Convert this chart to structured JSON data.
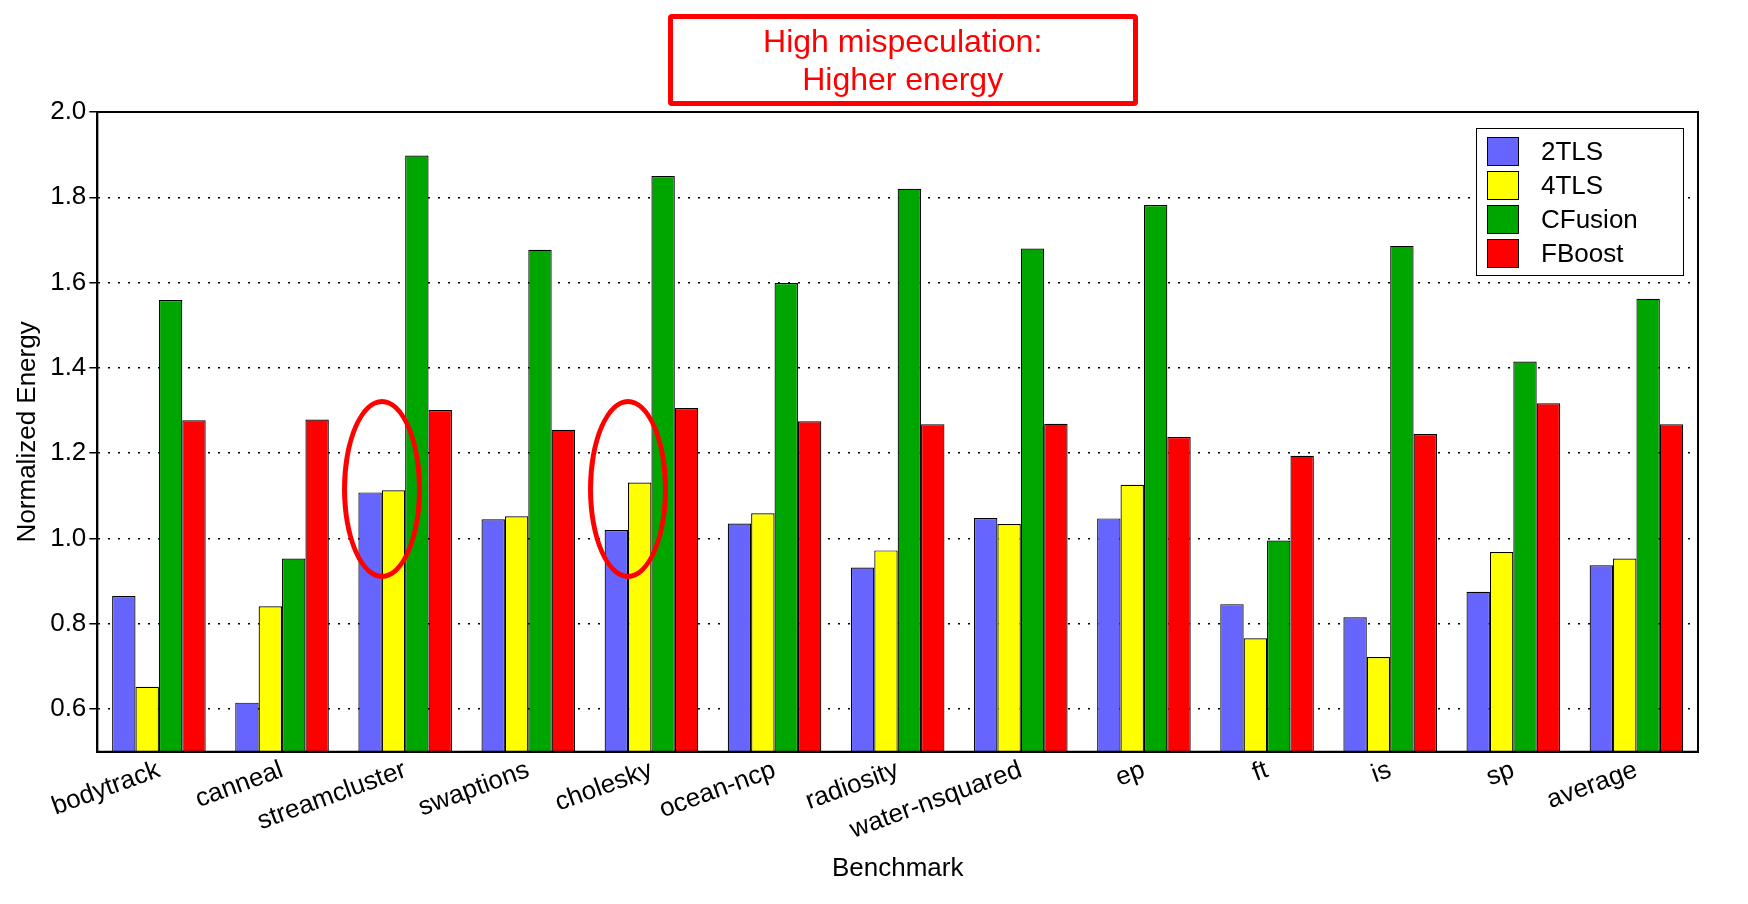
{
  "chart_data": {
    "type": "bar",
    "xlabel": "Benchmark",
    "ylabel": "Normalized Energy",
    "categories": [
      "bodytrack",
      "canneal",
      "streamcluster",
      "swaptions",
      "cholesky",
      "ocean-ncp",
      "radiosity",
      "water-nsquared",
      "ep",
      "ft",
      "is",
      "sp",
      "average"
    ],
    "series": [
      {
        "name": "2TLS",
        "color": "#6666ff",
        "values": [
          0.865,
          0.615,
          1.108,
          1.045,
          1.02,
          1.035,
          0.932,
          1.048,
          1.047,
          0.846,
          0.815,
          0.875,
          0.937
        ]
      },
      {
        "name": "4TLS",
        "color": "#ffff00",
        "values": [
          0.652,
          0.841,
          1.113,
          1.052,
          1.131,
          1.059,
          0.972,
          1.034,
          1.126,
          0.766,
          0.722,
          0.968,
          0.953
        ]
      },
      {
        "name": "CFusion",
        "color": "#00a600",
        "values": [
          1.559,
          0.953,
          1.898,
          1.677,
          1.85,
          1.599,
          1.82,
          1.68,
          1.782,
          0.995,
          1.686,
          1.415,
          1.562
        ]
      },
      {
        "name": "FBoost",
        "color": "#ff0000",
        "values": [
          1.277,
          1.279,
          1.301,
          1.255,
          1.306,
          1.275,
          1.268,
          1.269,
          1.238,
          1.194,
          1.245,
          1.317,
          1.268
        ]
      }
    ],
    "ylim": [
      0.5,
      2.0
    ],
    "yticks": [
      0.6,
      0.8,
      {
        "value": 1,
        "label": "1.0"
      },
      1.2,
      1.4,
      1.6,
      1.8,
      {
        "value": 2,
        "label": "2.0"
      }
    ],
    "grid": "y",
    "legend": "top right",
    "annotations": [
      "High mispeculation:\nHigher energy"
    ]
  }
}
